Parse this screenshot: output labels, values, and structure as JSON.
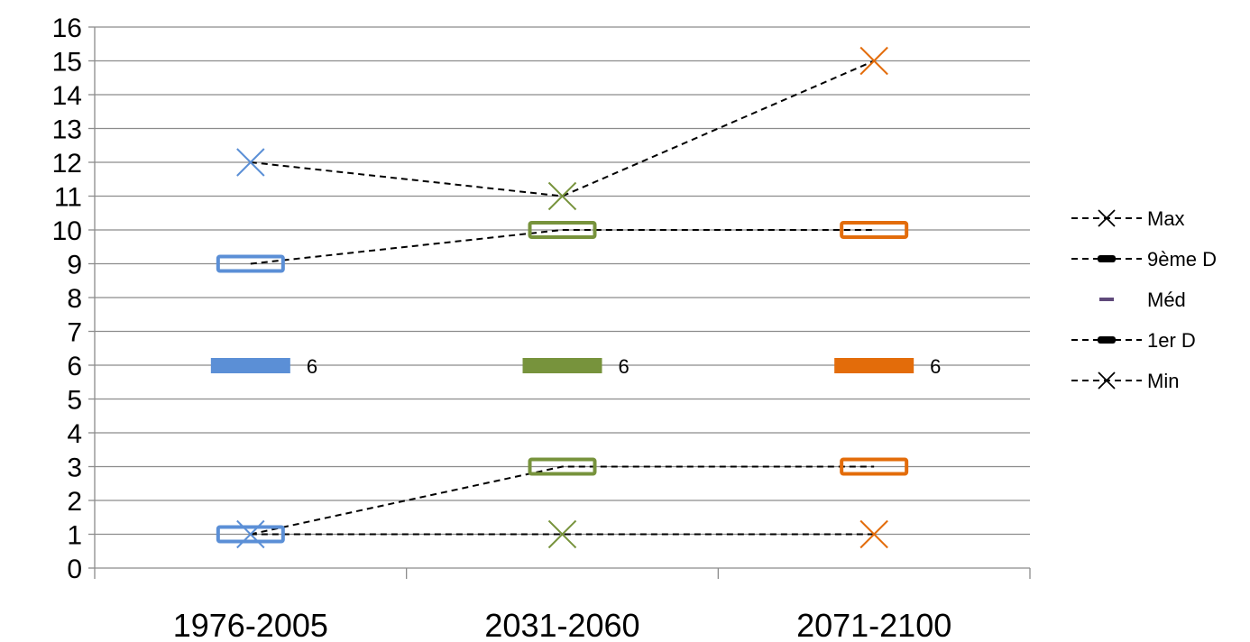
{
  "chart_data": {
    "type": "line",
    "categories": [
      "1976-2005",
      "2031-2060",
      "2071-2100"
    ],
    "ylim": [
      0,
      16
    ],
    "yticks": [
      0,
      1,
      2,
      3,
      4,
      5,
      6,
      7,
      8,
      9,
      10,
      11,
      12,
      13,
      14,
      15,
      16
    ],
    "grid": true,
    "legend_position": "right",
    "category_colors": [
      "#5b8fd6",
      "#77933c",
      "#e36c0a"
    ],
    "series": [
      {
        "name": "Max",
        "values": [
          12,
          11,
          15
        ],
        "marker": "x",
        "line": "dashed"
      },
      {
        "name": "9ème D",
        "values": [
          9,
          10,
          10
        ],
        "marker": "box",
        "line": "dashed"
      },
      {
        "name": "Méd",
        "values": [
          6,
          6,
          6
        ],
        "marker": "bar",
        "line": "none",
        "labels": [
          "6",
          "6",
          "6"
        ]
      },
      {
        "name": "1er D",
        "values": [
          1,
          3,
          3
        ],
        "marker": "box",
        "line": "dashed"
      },
      {
        "name": "Min",
        "values": [
          1,
          1,
          1
        ],
        "marker": "x",
        "line": "dashed"
      }
    ]
  }
}
